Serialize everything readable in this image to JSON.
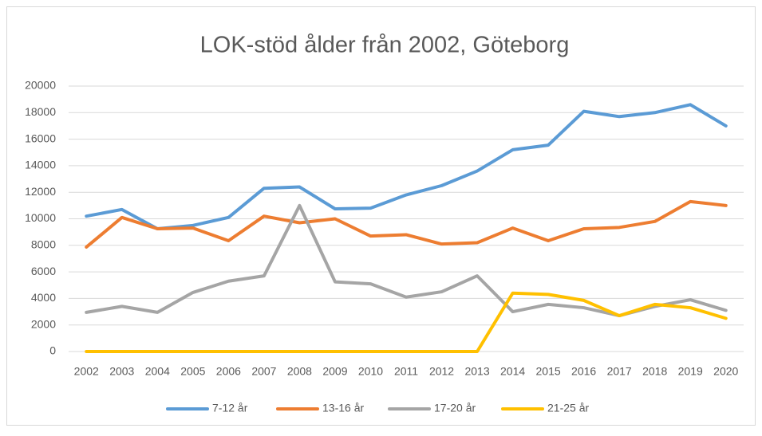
{
  "chart_data": {
    "type": "line",
    "title": "LOK-stöd ålder från 2002, Göteborg",
    "categories": [
      "2002",
      "2003",
      "2004",
      "2005",
      "2006",
      "2007",
      "2008",
      "2009",
      "2010",
      "2011",
      "2012",
      "2013",
      "2014",
      "2015",
      "2016",
      "2017",
      "2018",
      "2019",
      "2020"
    ],
    "series": [
      {
        "name": "7-12 år",
        "color": "#5b9bd5",
        "values": [
          10200,
          10700,
          9250,
          9500,
          10100,
          12300,
          12400,
          10750,
          10800,
          11800,
          12500,
          13600,
          15200,
          15550,
          18100,
          17700,
          18000,
          18600,
          17000
        ]
      },
      {
        "name": "13-16 år",
        "color": "#ed7d31",
        "values": [
          7870,
          10100,
          9250,
          9300,
          8350,
          10200,
          9700,
          10000,
          8700,
          8800,
          8100,
          8200,
          9300,
          8350,
          9250,
          9350,
          9800,
          11300,
          11000
        ]
      },
      {
        "name": "17-20 år",
        "color": "#a5a5a5",
        "values": [
          2950,
          3400,
          2950,
          4450,
          5300,
          5700,
          11000,
          5250,
          5100,
          4100,
          4500,
          5700,
          3000,
          3550,
          3300,
          2700,
          3400,
          3900,
          3100
        ]
      },
      {
        "name": "21-25 år",
        "color": "#ffc000",
        "values": [
          0,
          0,
          0,
          0,
          0,
          0,
          0,
          0,
          0,
          0,
          0,
          0,
          4400,
          4300,
          3850,
          2700,
          3550,
          3300,
          2500
        ]
      }
    ],
    "ylim": [
      0,
      20000
    ],
    "yticks": [
      0,
      2000,
      4000,
      6000,
      8000,
      10000,
      12000,
      14000,
      16000,
      18000,
      20000
    ],
    "grid": true,
    "legend": "bottom"
  }
}
